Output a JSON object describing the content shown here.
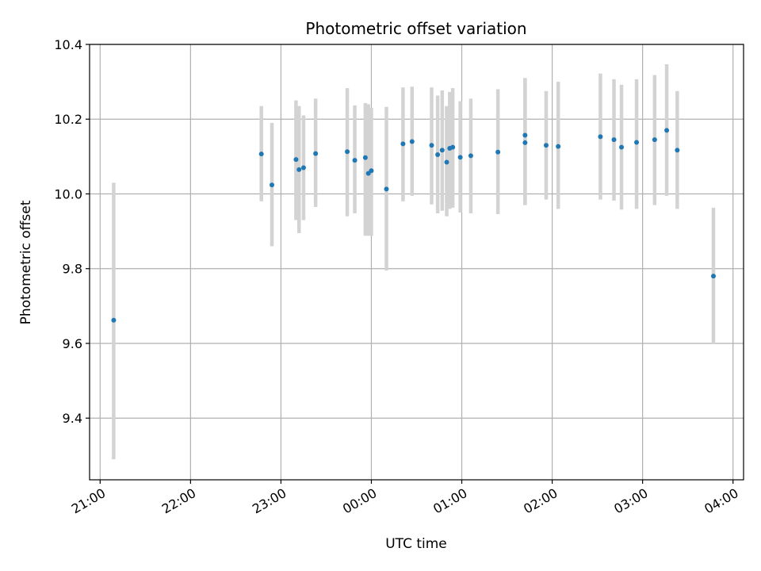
{
  "chart_data": {
    "type": "scatter",
    "title": "Photometric offset variation",
    "xlabel": "UTC time",
    "ylabel": "Photometric offset",
    "xlim": [
      "20:53",
      "04:07"
    ],
    "ylim": [
      9.235,
      10.4
    ],
    "x_ticks": [
      "21:00",
      "22:00",
      "23:00",
      "00:00",
      "01:00",
      "02:00",
      "03:00",
      "04:00"
    ],
    "y_ticks": [
      "9.4",
      "9.6",
      "9.8",
      "10.0",
      "10.2",
      "10.4"
    ],
    "grid": true,
    "colors": {
      "point": "#1f77b4",
      "errorbar": "#d3d3d3",
      "grid": "#b0b0b0"
    },
    "points": [
      {
        "x": "21:09",
        "y": 9.662,
        "ylow": 9.29,
        "yhigh": 10.03
      },
      {
        "x": "22:47",
        "y": 10.107,
        "ylow": 9.98,
        "yhigh": 10.235
      },
      {
        "x": "22:54",
        "y": 10.024,
        "ylow": 9.86,
        "yhigh": 10.19
      },
      {
        "x": "23:10",
        "y": 10.092,
        "ylow": 9.93,
        "yhigh": 10.25
      },
      {
        "x": "23:12",
        "y": 10.065,
        "ylow": 9.895,
        "yhigh": 10.235
      },
      {
        "x": "23:15",
        "y": 10.07,
        "ylow": 9.93,
        "yhigh": 10.21
      },
      {
        "x": "23:23",
        "y": 10.108,
        "ylow": 9.965,
        "yhigh": 10.255
      },
      {
        "x": "23:44",
        "y": 10.113,
        "ylow": 9.94,
        "yhigh": 10.283
      },
      {
        "x": "23:49",
        "y": 10.09,
        "ylow": 9.948,
        "yhigh": 10.237
      },
      {
        "x": "23:56",
        "y": 10.097,
        "ylow": 9.888,
        "yhigh": 10.243
      },
      {
        "x": "23:58",
        "y": 10.055,
        "ylow": 9.888,
        "yhigh": 10.24
      },
      {
        "x": "00:00",
        "y": 10.062,
        "ylow": 9.888,
        "yhigh": 10.23
      },
      {
        "x": "00:10",
        "y": 10.013,
        "ylow": 9.795,
        "yhigh": 10.233
      },
      {
        "x": "00:21",
        "y": 10.134,
        "ylow": 9.98,
        "yhigh": 10.285
      },
      {
        "x": "00:27",
        "y": 10.14,
        "ylow": 9.995,
        "yhigh": 10.287
      },
      {
        "x": "00:40",
        "y": 10.13,
        "ylow": 9.972,
        "yhigh": 10.285
      },
      {
        "x": "00:44",
        "y": 10.105,
        "ylow": 9.948,
        "yhigh": 10.263
      },
      {
        "x": "00:47",
        "y": 10.117,
        "ylow": 9.955,
        "yhigh": 10.277
      },
      {
        "x": "00:50",
        "y": 10.085,
        "ylow": 9.94,
        "yhigh": 10.235
      },
      {
        "x": "00:52",
        "y": 10.122,
        "ylow": 9.96,
        "yhigh": 10.273
      },
      {
        "x": "00:54",
        "y": 10.125,
        "ylow": 9.963,
        "yhigh": 10.283
      },
      {
        "x": "00:59",
        "y": 10.098,
        "ylow": 9.95,
        "yhigh": 10.248
      },
      {
        "x": "01:06",
        "y": 10.102,
        "ylow": 9.948,
        "yhigh": 10.255
      },
      {
        "x": "01:24",
        "y": 10.112,
        "ylow": 9.946,
        "yhigh": 10.28
      },
      {
        "x": "01:42",
        "y": 10.157,
        "ylow": 9.97,
        "yhigh": 10.31
      },
      {
        "x": "01:42",
        "y": 10.137,
        "ylow": 9.97,
        "yhigh": 10.31
      },
      {
        "x": "01:56",
        "y": 10.13,
        "ylow": 9.985,
        "yhigh": 10.275
      },
      {
        "x": "02:04",
        "y": 10.127,
        "ylow": 9.96,
        "yhigh": 10.3
      },
      {
        "x": "02:32",
        "y": 10.153,
        "ylow": 9.985,
        "yhigh": 10.322
      },
      {
        "x": "02:41",
        "y": 10.145,
        "ylow": 9.982,
        "yhigh": 10.307
      },
      {
        "x": "02:46",
        "y": 10.125,
        "ylow": 9.958,
        "yhigh": 10.292
      },
      {
        "x": "02:56",
        "y": 10.138,
        "ylow": 9.96,
        "yhigh": 10.307
      },
      {
        "x": "03:08",
        "y": 10.145,
        "ylow": 9.97,
        "yhigh": 10.318
      },
      {
        "x": "03:16",
        "y": 10.17,
        "ylow": 9.995,
        "yhigh": 10.347
      },
      {
        "x": "03:23",
        "y": 10.117,
        "ylow": 9.96,
        "yhigh": 10.275
      },
      {
        "x": "03:47",
        "y": 9.78,
        "ylow": 9.598,
        "yhigh": 9.963
      }
    ]
  }
}
